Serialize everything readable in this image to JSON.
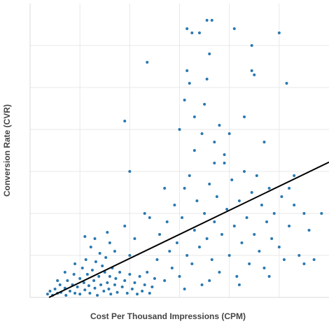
{
  "chart_data": {
    "type": "scatter",
    "x_label": "Cost Per Thousand Impressions (CPM)",
    "y_label": "Conversion Rate (CVR)",
    "xlim": [
      0,
      6
    ],
    "ylim": [
      0,
      7
    ],
    "xticks": [
      1,
      2,
      3,
      4,
      5
    ],
    "yticks": [
      1,
      2,
      3,
      4,
      5,
      6
    ],
    "grid": true,
    "series": [
      {
        "color": "#2a78b0",
        "x": [
          0.35,
          0.4,
          0.45,
          0.5,
          0.55,
          0.6,
          0.62,
          0.7,
          0.72,
          0.75,
          0.8,
          0.85,
          0.88,
          0.9,
          0.95,
          1.0,
          1.0,
          1.05,
          1.08,
          1.1,
          1.12,
          1.15,
          1.18,
          1.2,
          1.22,
          1.25,
          1.28,
          1.3,
          1.32,
          1.35,
          1.38,
          1.4,
          1.42,
          1.45,
          1.48,
          1.5,
          1.52,
          1.55,
          1.58,
          1.6,
          1.62,
          1.65,
          1.7,
          1.72,
          1.75,
          1.8,
          1.85,
          1.9,
          1.95,
          2.0,
          2.05,
          2.1,
          2.15,
          2.2,
          2.25,
          2.3,
          2.35,
          2.4,
          2.45,
          2.5,
          1.3,
          1.6,
          1.1,
          0.9,
          1.7,
          2.0,
          1.9,
          1.55,
          0.7,
          0.55,
          2.55,
          2.6,
          2.7,
          2.75,
          2.8,
          2.85,
          2.9,
          2.95,
          3.0,
          3.05,
          3.1,
          3.15,
          3.2,
          3.25,
          3.3,
          3.35,
          3.4,
          3.45,
          3.5,
          3.55,
          3.6,
          3.65,
          3.7,
          3.75,
          3.8,
          3.85,
          3.9,
          3.95,
          4.0,
          4.05,
          4.1,
          4.15,
          4.2,
          4.25,
          4.3,
          4.35,
          4.4,
          4.45,
          4.5,
          4.55,
          4.6,
          4.65,
          4.7,
          4.75,
          4.8,
          4.85,
          4.9,
          5.0,
          5.05,
          5.1,
          5.2,
          5.3,
          5.4,
          5.5,
          5.6,
          5.7,
          5.85,
          5.2,
          5.3,
          3.1,
          3.6,
          4.2,
          4.8,
          5.5,
          3.3,
          2.7,
          2.3,
          2.1,
          2.4,
          3.0,
          3.1,
          3.15,
          3.2,
          3.15,
          3.25,
          3.4,
          3.55,
          3.65,
          3.5,
          3.55,
          3.6,
          3.3,
          3.7,
          3.8,
          4.0,
          4.3,
          4.45,
          4.5,
          4.1,
          4.45,
          5.0,
          5.15,
          2.35,
          1.9,
          2.0,
          4.7,
          3.9,
          3.7,
          3.45
        ],
        "values": [
          0.08,
          0.15,
          0.05,
          0.2,
          0.1,
          0.3,
          0.12,
          0.22,
          0.05,
          0.4,
          0.15,
          0.3,
          0.55,
          0.1,
          0.25,
          0.45,
          0.08,
          0.7,
          0.35,
          0.18,
          0.9,
          0.55,
          0.28,
          0.1,
          1.2,
          0.65,
          0.4,
          0.22,
          0.85,
          0.05,
          0.5,
          1.05,
          0.3,
          0.75,
          0.15,
          0.6,
          0.95,
          0.35,
          0.2,
          0.5,
          0.08,
          0.7,
          0.3,
          0.45,
          0.12,
          0.6,
          0.25,
          0.4,
          0.1,
          0.55,
          0.2,
          0.35,
          0.08,
          0.5,
          0.15,
          0.3,
          0.6,
          0.1,
          0.25,
          0.45,
          1.4,
          1.3,
          1.45,
          0.8,
          1.1,
          1.0,
          1.7,
          1.55,
          0.6,
          0.4,
          0.9,
          1.5,
          0.4,
          1.8,
          1.1,
          0.7,
          2.2,
          1.3,
          0.5,
          1.9,
          2.6,
          1.0,
          2.9,
          0.8,
          1.6,
          2.3,
          1.2,
          0.3,
          2.0,
          1.4,
          2.7,
          0.9,
          1.8,
          2.4,
          0.6,
          1.5,
          3.2,
          2.1,
          1.0,
          2.8,
          1.7,
          0.5,
          2.3,
          1.3,
          3.0,
          1.9,
          0.8,
          2.5,
          1.5,
          2.9,
          1.1,
          2.2,
          0.7,
          1.8,
          2.6,
          1.4,
          2.0,
          1.2,
          2.4,
          0.9,
          1.7,
          2.2,
          1.0,
          2.0,
          1.6,
          0.9,
          2.0,
          2.6,
          2.9,
          0.2,
          0.4,
          0.3,
          0.5,
          0.8,
          3.5,
          2.6,
          2.0,
          1.4,
          1.9,
          4.0,
          4.7,
          5.4,
          5.1,
          6.4,
          6.3,
          6.3,
          6.6,
          6.6,
          4.6,
          5.2,
          5.8,
          4.3,
          3.7,
          4.1,
          3.9,
          4.3,
          5.4,
          5.3,
          6.4,
          6.0,
          6.3,
          5.1,
          5.6,
          4.2,
          3.0,
          3.7,
          3.4,
          3.2,
          3.9
        ]
      }
    ],
    "trend_line": {
      "color": "#000000",
      "x": [
        0.38,
        6
      ],
      "values": [
        0,
        3.22
      ]
    }
  }
}
